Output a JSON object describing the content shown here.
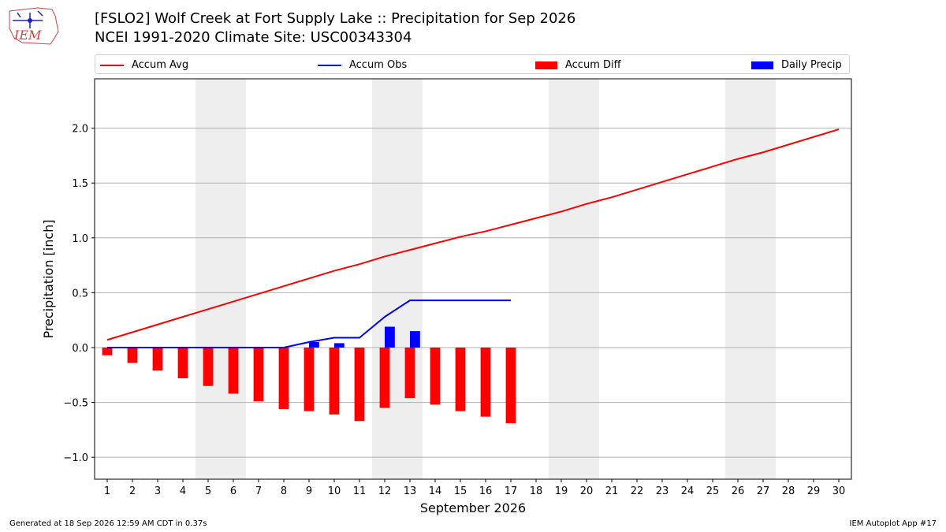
{
  "header": {
    "title_line1": "[FSLO2] Wolf Creek at Fort Supply Lake :: Precipitation for Sep 2026",
    "title_line2": "NCEI 1991-2020 Climate Site: USC00343304",
    "logo_text": "IEM"
  },
  "colors": {
    "avg": "#ff0000",
    "obs": "#0000ff",
    "diff": "#ff0000",
    "daily": "#0000ff",
    "weekend_band": "#eeeeee",
    "grid": "#b0b0b0"
  },
  "legend": {
    "placement": "top",
    "items": [
      {
        "label": "Accum Avg",
        "kind": "line",
        "color": "#ff0000"
      },
      {
        "label": "Accum Obs",
        "kind": "line",
        "color": "#0000ff"
      },
      {
        "label": "Accum Diff",
        "kind": "box",
        "color": "#ff0000"
      },
      {
        "label": "Daily Precip",
        "kind": "box",
        "color": "#0000ff"
      }
    ]
  },
  "chart_data": {
    "type": "bar",
    "xlabel": "September 2026",
    "ylabel": "Precipitation [inch]",
    "xlim": [
      0.5,
      30.5
    ],
    "ylim": [
      -1.2,
      2.45
    ],
    "yticks": [
      -1.0,
      -0.5,
      0.0,
      0.5,
      1.0,
      1.5,
      2.0
    ],
    "ytick_labels": [
      "−1.0",
      "−0.5",
      "0.0",
      "0.5",
      "1.0",
      "1.5",
      "2.0"
    ],
    "x": [
      1,
      2,
      3,
      4,
      5,
      6,
      7,
      8,
      9,
      10,
      11,
      12,
      13,
      14,
      15,
      16,
      17,
      18,
      19,
      20,
      21,
      22,
      23,
      24,
      25,
      26,
      27,
      28,
      29,
      30
    ],
    "grid": "horizontal",
    "weekend_days": [
      5,
      6,
      12,
      13,
      19,
      20,
      26,
      27
    ],
    "series": [
      {
        "name": "Accum Avg",
        "type": "line",
        "color": "#ff0000",
        "x": [
          1,
          2,
          3,
          4,
          5,
          6,
          7,
          8,
          9,
          10,
          11,
          12,
          13,
          14,
          15,
          16,
          17,
          18,
          19,
          20,
          21,
          22,
          23,
          24,
          25,
          26,
          27,
          28,
          29,
          30
        ],
        "values": [
          0.07,
          0.14,
          0.21,
          0.28,
          0.35,
          0.42,
          0.49,
          0.56,
          0.63,
          0.7,
          0.76,
          0.83,
          0.89,
          0.95,
          1.01,
          1.06,
          1.12,
          1.18,
          1.24,
          1.31,
          1.37,
          1.44,
          1.51,
          1.58,
          1.65,
          1.72,
          1.78,
          1.85,
          1.92,
          1.99
        ]
      },
      {
        "name": "Accum Obs",
        "type": "line",
        "color": "#0000ff",
        "x": [
          1,
          2,
          3,
          4,
          5,
          6,
          7,
          8,
          9,
          10,
          11,
          12,
          13,
          14,
          15,
          16,
          17
        ],
        "values": [
          0.0,
          0.0,
          0.0,
          0.0,
          0.0,
          0.0,
          0.0,
          0.0,
          0.05,
          0.09,
          0.09,
          0.28,
          0.43,
          0.43,
          0.43,
          0.43,
          0.43
        ]
      },
      {
        "name": "Accum Diff",
        "type": "bar",
        "color": "#ff0000",
        "x": [
          1,
          2,
          3,
          4,
          5,
          6,
          7,
          8,
          9,
          10,
          11,
          12,
          13,
          14,
          15,
          16,
          17
        ],
        "values": [
          -0.07,
          -0.14,
          -0.21,
          -0.28,
          -0.35,
          -0.42,
          -0.49,
          -0.56,
          -0.58,
          -0.61,
          -0.67,
          -0.55,
          -0.46,
          -0.52,
          -0.58,
          -0.63,
          -0.69
        ]
      },
      {
        "name": "Daily Precip",
        "type": "bar",
        "color": "#0000ff",
        "x": [
          9,
          10,
          12,
          13
        ],
        "values": [
          0.05,
          0.04,
          0.19,
          0.15
        ]
      }
    ]
  },
  "footer": {
    "generated": "Generated at 18 Sep 2026 12:59 AM CDT in 0.37s",
    "app": "IEM Autoplot App #17"
  }
}
